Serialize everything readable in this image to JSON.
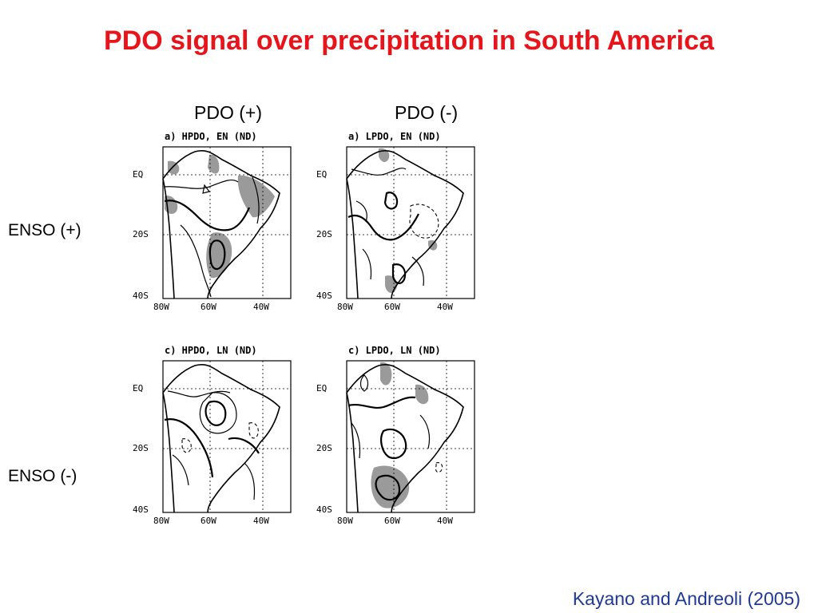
{
  "title": "PDO signal over precipitation in South America",
  "columns": [
    "PDO (+)",
    "PDO (-)"
  ],
  "rows": [
    "ENSO (+)",
    "ENSO (-)"
  ],
  "citation": "Kayano and Andreoli (2005)",
  "panels": [
    {
      "title": "a) HPDO, EN (ND)"
    },
    {
      "title": "a) LPDO, EN (ND)"
    },
    {
      "title": "c) HPDO, LN (ND)"
    },
    {
      "title": "c) LPDO, LN (ND)"
    }
  ],
  "axes": {
    "lat_ticks": [
      "EQ",
      "20S",
      "40S"
    ],
    "lon_ticks": [
      "80W",
      "60W",
      "40W"
    ]
  },
  "colors": {
    "title": "#e8141b",
    "citation": "#1f3a93",
    "shading": "#9a9a9a"
  }
}
